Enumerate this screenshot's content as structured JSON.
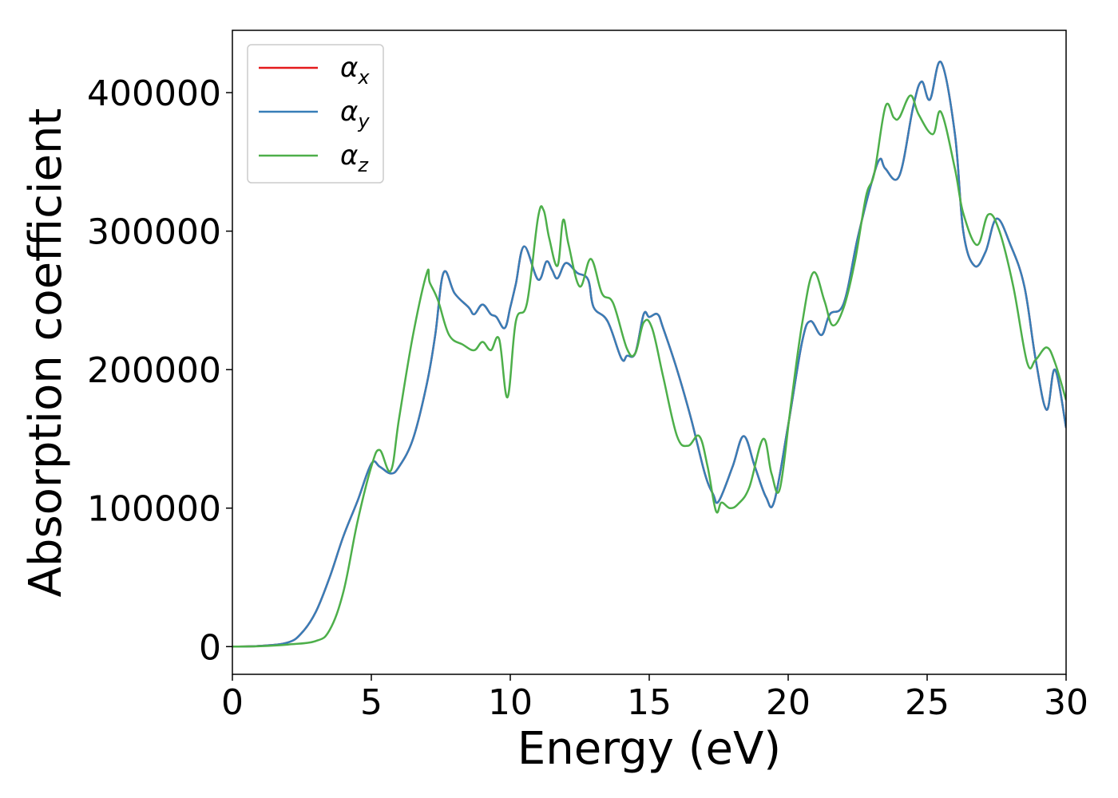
{
  "chart_data": {
    "type": "line",
    "xlabel": "Energy (eV)",
    "ylabel": "Absorption coefficient",
    "xlim": [
      0,
      30
    ],
    "ylim": [
      -20000,
      445000
    ],
    "xticks": [
      0,
      5,
      10,
      15,
      20,
      25,
      30
    ],
    "xtick_labels": [
      "0",
      "5",
      "10",
      "15",
      "20",
      "25",
      "30"
    ],
    "yticks": [
      0,
      100000,
      200000,
      300000,
      400000
    ],
    "ytick_labels": [
      "0",
      "100000",
      "200000",
      "300000",
      "400000"
    ],
    "grid": false,
    "legend_position": "top-left",
    "series": [
      {
        "name": "αx",
        "legend_base": "α",
        "legend_sub": "x",
        "color": "#e41a1c",
        "x": [
          0,
          1,
          2,
          2.5,
          3,
          3.5,
          4,
          4.5,
          5,
          5.3,
          5.7,
          6,
          6.5,
          7,
          7.3,
          7.6,
          8,
          8.5,
          8.7,
          9,
          9.3,
          9.5,
          9.8,
          10,
          10.2,
          10.5,
          11,
          11.3,
          11.5,
          11.7,
          12,
          12.4,
          12.8,
          13,
          13.5,
          14,
          14.2,
          14.5,
          14.8,
          15,
          15.3,
          15.5,
          16,
          16.5,
          17,
          17.3,
          17.5,
          18,
          18.4,
          18.8,
          19.2,
          19.5,
          20,
          20.5,
          20.8,
          21.2,
          21.5,
          22,
          22.5,
          23,
          23.3,
          23.5,
          24,
          24.5,
          24.8,
          25.1,
          25.5,
          26,
          26.3,
          26.7,
          27.1,
          27.5,
          28,
          28.5,
          28.9,
          29.3,
          29.6,
          30
        ],
        "y": [
          0,
          500,
          3000,
          10000,
          25000,
          50000,
          80000,
          105000,
          132000,
          130000,
          125000,
          130000,
          150000,
          190000,
          225000,
          270000,
          255000,
          245000,
          240000,
          247000,
          240000,
          238000,
          230000,
          245000,
          262000,
          289000,
          265000,
          278000,
          272000,
          266000,
          277000,
          270000,
          265000,
          245000,
          235000,
          208000,
          210000,
          212000,
          240000,
          238000,
          240000,
          230000,
          200000,
          165000,
          125000,
          110000,
          105000,
          130000,
          152000,
          130000,
          108000,
          105000,
          160000,
          220000,
          235000,
          225000,
          240000,
          248000,
          295000,
          335000,
          352000,
          345000,
          340000,
          390000,
          408000,
          395000,
          422000,
          370000,
          300000,
          275000,
          285000,
          309000,
          290000,
          260000,
          208000,
          171000,
          200000,
          158000
        ]
      },
      {
        "name": "αy",
        "legend_base": "α",
        "legend_sub": "y",
        "color": "#377eb8",
        "x": [
          0,
          1,
          2,
          2.5,
          3,
          3.5,
          4,
          4.5,
          5,
          5.3,
          5.7,
          6,
          6.5,
          7,
          7.3,
          7.6,
          8,
          8.5,
          8.7,
          9,
          9.3,
          9.5,
          9.8,
          10,
          10.2,
          10.5,
          11,
          11.3,
          11.5,
          11.7,
          12,
          12.4,
          12.8,
          13,
          13.5,
          14,
          14.2,
          14.5,
          14.8,
          15,
          15.3,
          15.5,
          16,
          16.5,
          17,
          17.3,
          17.5,
          18,
          18.4,
          18.8,
          19.2,
          19.5,
          20,
          20.5,
          20.8,
          21.2,
          21.5,
          22,
          22.5,
          23,
          23.3,
          23.5,
          24,
          24.5,
          24.8,
          25.1,
          25.5,
          26,
          26.3,
          26.7,
          27.1,
          27.5,
          28,
          28.5,
          28.9,
          29.3,
          29.6,
          30
        ],
        "y": [
          0,
          500,
          3000,
          10000,
          25000,
          50000,
          80000,
          105000,
          132000,
          130000,
          125000,
          130000,
          150000,
          190000,
          225000,
          270000,
          255000,
          245000,
          240000,
          247000,
          240000,
          238000,
          230000,
          245000,
          262000,
          289000,
          265000,
          278000,
          272000,
          266000,
          277000,
          270000,
          265000,
          245000,
          235000,
          208000,
          210000,
          212000,
          240000,
          238000,
          240000,
          230000,
          200000,
          165000,
          125000,
          110000,
          105000,
          130000,
          152000,
          130000,
          108000,
          105000,
          160000,
          220000,
          235000,
          225000,
          240000,
          248000,
          295000,
          335000,
          352000,
          345000,
          340000,
          390000,
          408000,
          395000,
          422000,
          370000,
          300000,
          275000,
          285000,
          309000,
          290000,
          260000,
          208000,
          171000,
          200000,
          158000
        ]
      },
      {
        "name": "αz",
        "legend_base": "α",
        "legend_sub": "z",
        "color": "#4daf4a",
        "x": [
          0,
          1,
          2,
          3,
          3.5,
          4,
          4.5,
          5,
          5.3,
          5.7,
          6,
          6.5,
          7,
          7.1,
          7.4,
          7.8,
          8.3,
          8.7,
          9,
          9.3,
          9.6,
          9.9,
          10.2,
          10.6,
          11,
          11.2,
          11.4,
          11.7,
          11.9,
          12.1,
          12.5,
          12.9,
          13.3,
          13.7,
          14.2,
          14.5,
          14.8,
          15.1,
          15.5,
          16,
          16.4,
          16.8,
          17.1,
          17.4,
          17.6,
          17.9,
          18.2,
          18.6,
          19.1,
          19.4,
          19.7,
          20.1,
          20.5,
          20.9,
          21.3,
          21.6,
          22,
          22.4,
          22.8,
          23.1,
          23.5,
          23.8,
          24,
          24.4,
          24.7,
          25.2,
          25.5,
          26,
          26.3,
          26.8,
          27.2,
          27.6,
          28.1,
          28.6,
          28.9,
          29.3,
          29.6,
          30
        ],
        "y": [
          0,
          300,
          1500,
          4000,
          12000,
          40000,
          90000,
          130000,
          142000,
          127000,
          165000,
          225000,
          270000,
          263000,
          250000,
          225000,
          218000,
          214000,
          220000,
          214000,
          222000,
          180000,
          235000,
          248000,
          310000,
          315000,
          295000,
          275000,
          308000,
          290000,
          260000,
          280000,
          255000,
          248000,
          215000,
          212000,
          234000,
          230000,
          195000,
          152000,
          145000,
          152000,
          130000,
          98000,
          104000,
          100000,
          103000,
          115000,
          150000,
          125000,
          114000,
          175000,
          233000,
          270000,
          250000,
          232000,
          245000,
          278000,
          325000,
          342000,
          390000,
          382000,
          382000,
          398000,
          384000,
          370000,
          386000,
          345000,
          313000,
          290000,
          312000,
          300000,
          260000,
          205000,
          207000,
          216000,
          205000,
          178000
        ]
      }
    ]
  }
}
